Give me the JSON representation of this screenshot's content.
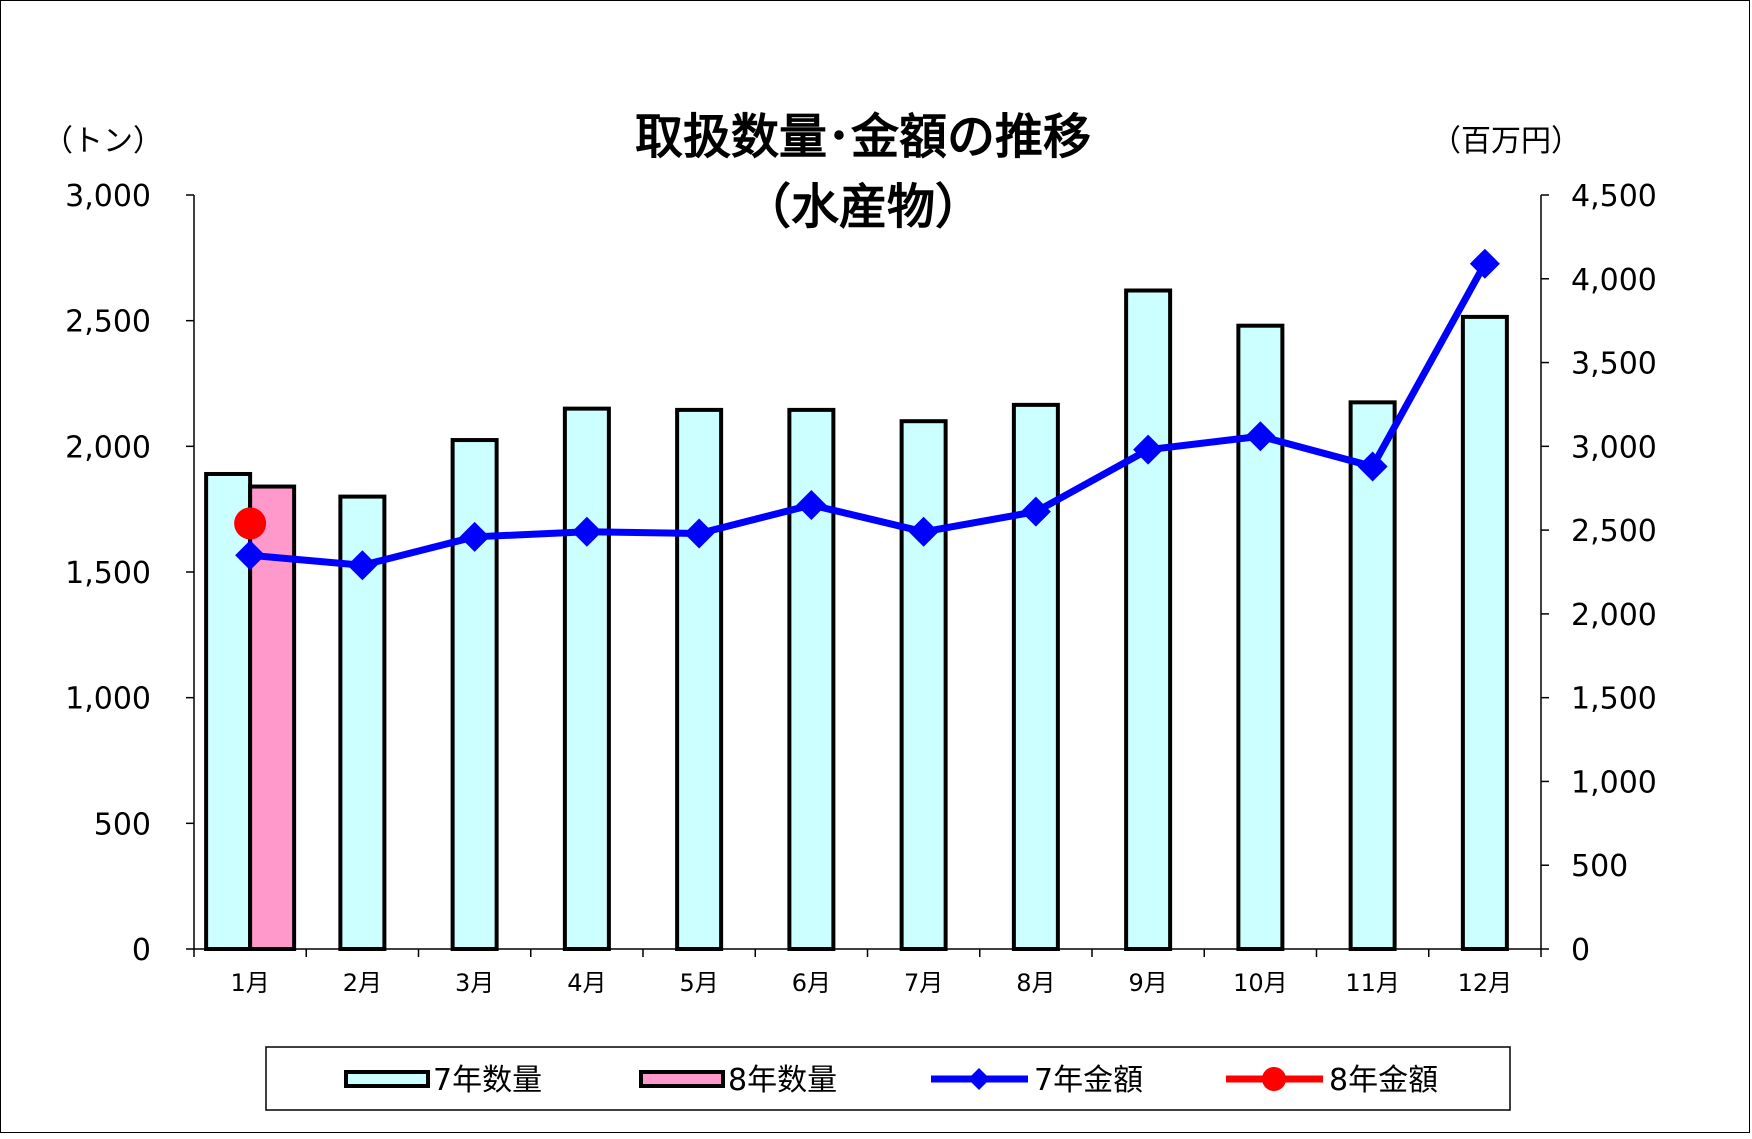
{
  "chart_data": {
    "type": "bar",
    "title": "取扱数量･金額の推移",
    "subtitle": "（水産物）",
    "y_left_unit": "（トン）",
    "y_right_unit": "（百万円）",
    "categories": [
      "1月",
      "2月",
      "3月",
      "4月",
      "5月",
      "6月",
      "7月",
      "8月",
      "9月",
      "10月",
      "11月",
      "12月"
    ],
    "left_ticks": [
      "0",
      "500",
      "1,000",
      "1,500",
      "2,000",
      "2,500",
      "3,000"
    ],
    "right_ticks": [
      "0",
      "500",
      "1,000",
      "1,500",
      "2,000",
      "2,500",
      "3,000",
      "3,500",
      "4,000",
      "4,500"
    ],
    "ylim_left": [
      0,
      3000
    ],
    "ylim_right": [
      0,
      4500
    ],
    "grid": false,
    "legend_position": "bottom",
    "series": [
      {
        "name": "7年数量",
        "kind": "bar",
        "axis": "left",
        "color": "#ccffff",
        "values": [
          1890,
          1800,
          2025,
          2150,
          2145,
          2145,
          2100,
          2165,
          2620,
          2480,
          2175,
          2515
        ]
      },
      {
        "name": "8年数量",
        "kind": "bar",
        "axis": "left",
        "color": "#ff99cc",
        "values": [
          1840,
          null,
          null,
          null,
          null,
          null,
          null,
          null,
          null,
          null,
          null,
          null
        ]
      },
      {
        "name": "7年金額",
        "kind": "line",
        "axis": "right",
        "color": "#0000ff",
        "marker": "diamond",
        "values": [
          2350,
          2290,
          2460,
          2490,
          2480,
          2650,
          2490,
          2610,
          2980,
          3060,
          2880,
          4090
        ]
      },
      {
        "name": "8年金額",
        "kind": "line",
        "axis": "right",
        "color": "#ff0000",
        "marker": "circle",
        "values": [
          2540,
          null,
          null,
          null,
          null,
          null,
          null,
          null,
          null,
          null,
          null,
          null
        ]
      }
    ]
  }
}
